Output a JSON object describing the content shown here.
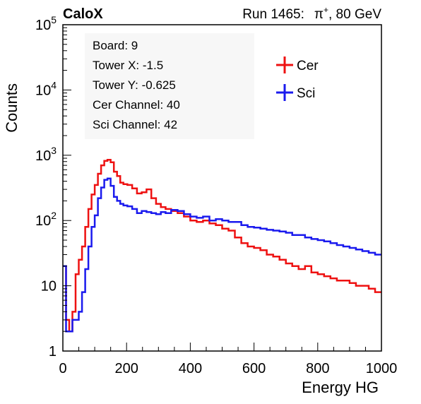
{
  "chart_data": {
    "type": "line",
    "experiment_label": "CaloX",
    "run_label": "Run 1465:",
    "beam_particle": "π",
    "beam_charge": "+",
    "beam_energy": ", 80 GeV",
    "xlabel": "Energy HG",
    "ylabel": "Counts",
    "xlim": [
      0,
      1000
    ],
    "ylim": [
      1,
      100000
    ],
    "y_scale": "log",
    "grid": false,
    "x_ticks": [
      "0",
      "200",
      "400",
      "600",
      "800",
      "1000"
    ],
    "y_ticks": [
      {
        "base": "1",
        "exp": ""
      },
      {
        "base": "10",
        "exp": ""
      },
      {
        "base": "10",
        "exp": "2"
      },
      {
        "base": "10",
        "exp": "3"
      },
      {
        "base": "10",
        "exp": "4"
      },
      {
        "base": "10",
        "exp": "5"
      }
    ],
    "info_box": [
      "Board: 9",
      "Tower X: -1.5",
      "Tower Y: -0.625",
      "Cer Channel: 40",
      "Sci Channel: 42"
    ],
    "legend_position": "top-right",
    "series": [
      {
        "name": "Cer",
        "color": "#ee1111",
        "x": [
          5,
          15,
          25,
          35,
          45,
          55,
          65,
          75,
          85,
          95,
          105,
          115,
          125,
          135,
          145,
          155,
          165,
          175,
          185,
          195,
          210,
          225,
          240,
          255,
          270,
          285,
          300,
          315,
          330,
          350,
          370,
          390,
          410,
          430,
          450,
          470,
          490,
          510,
          530,
          550,
          570,
          590,
          610,
          630,
          650,
          670,
          690,
          710,
          730,
          750,
          770,
          790,
          810,
          830,
          850,
          870,
          890,
          910,
          930,
          950,
          970,
          990
        ],
        "values": [
          20,
          3,
          2,
          4,
          15,
          25,
          40,
          80,
          150,
          250,
          350,
          520,
          700,
          820,
          850,
          780,
          560,
          480,
          380,
          360,
          350,
          310,
          260,
          270,
          300,
          220,
          180,
          160,
          150,
          140,
          130,
          115,
          100,
          95,
          100,
          90,
          85,
          75,
          70,
          55,
          45,
          40,
          38,
          35,
          30,
          28,
          25,
          22,
          20,
          18,
          20,
          16,
          15,
          14,
          13,
          12,
          12,
          11,
          10,
          10,
          9,
          8
        ]
      },
      {
        "name": "Sci",
        "color": "#1a1aee",
        "x": [
          5,
          15,
          25,
          35,
          45,
          55,
          65,
          75,
          85,
          95,
          105,
          115,
          125,
          135,
          145,
          155,
          165,
          175,
          185,
          195,
          210,
          225,
          240,
          255,
          270,
          285,
          300,
          315,
          330,
          350,
          370,
          390,
          410,
          430,
          450,
          470,
          490,
          510,
          530,
          550,
          570,
          590,
          610,
          630,
          650,
          670,
          690,
          710,
          730,
          750,
          770,
          790,
          810,
          830,
          850,
          870,
          890,
          910,
          930,
          950,
          970,
          990
        ],
        "values": [
          20,
          2,
          2,
          3,
          3,
          4,
          8,
          18,
          40,
          80,
          120,
          220,
          320,
          420,
          440,
          340,
          230,
          200,
          180,
          170,
          165,
          150,
          130,
          140,
          135,
          130,
          125,
          135,
          130,
          145,
          140,
          125,
          115,
          110,
          115,
          100,
          105,
          100,
          95,
          95,
          85,
          80,
          78,
          75,
          72,
          70,
          68,
          65,
          60,
          60,
          55,
          52,
          50,
          48,
          45,
          42,
          40,
          38,
          36,
          34,
          32,
          30
        ]
      }
    ]
  }
}
